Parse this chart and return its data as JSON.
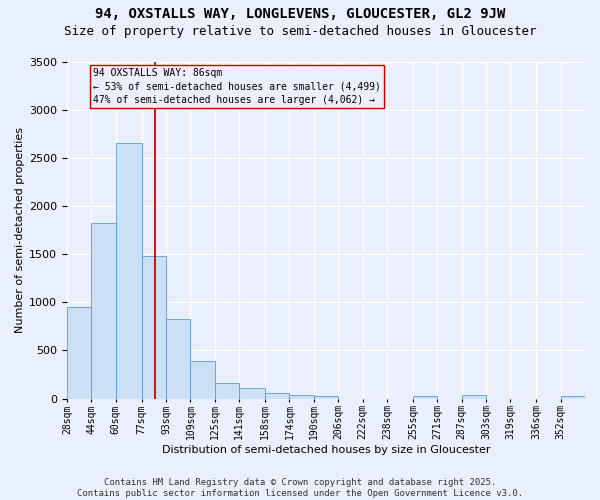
{
  "title1": "94, OXSTALLS WAY, LONGLEVENS, GLOUCESTER, GL2 9JW",
  "title2": "Size of property relative to semi-detached houses in Gloucester",
  "xlabel": "Distribution of semi-detached houses by size in Gloucester",
  "ylabel": "Number of semi-detached properties",
  "footnote1": "Contains HM Land Registry data © Crown copyright and database right 2025.",
  "footnote2": "Contains public sector information licensed under the Open Government Licence v3.0.",
  "bin_labels": [
    "28sqm",
    "44sqm",
    "60sqm",
    "77sqm",
    "93sqm",
    "109sqm",
    "125sqm",
    "141sqm",
    "158sqm",
    "174sqm",
    "190sqm",
    "206sqm",
    "222sqm",
    "238sqm",
    "255sqm",
    "271sqm",
    "287sqm",
    "303sqm",
    "319sqm",
    "336sqm",
    "352sqm"
  ],
  "bar_values": [
    950,
    1820,
    2650,
    1480,
    830,
    390,
    165,
    110,
    60,
    35,
    25,
    0,
    0,
    0,
    30,
    0,
    35,
    0,
    0,
    0,
    25
  ],
  "bin_edges": [
    28,
    44,
    60,
    77,
    93,
    109,
    125,
    141,
    158,
    174,
    190,
    206,
    222,
    238,
    255,
    271,
    287,
    303,
    319,
    336,
    352,
    368
  ],
  "property_size": 86,
  "pct_smaller": 53,
  "pct_larger": 47,
  "n_smaller": 4499,
  "n_larger": 4062,
  "bar_color": "#cce0f5",
  "bar_edge_color": "#5b9bd5",
  "vline_color": "#cc0000",
  "background_color": "#eaf0fb",
  "grid_color": "#ffffff",
  "ylim": [
    0,
    3500
  ],
  "title1_fontsize": 10,
  "title2_fontsize": 9,
  "axis_fontsize": 8,
  "tick_fontsize": 7,
  "footnote_fontsize": 6.5
}
